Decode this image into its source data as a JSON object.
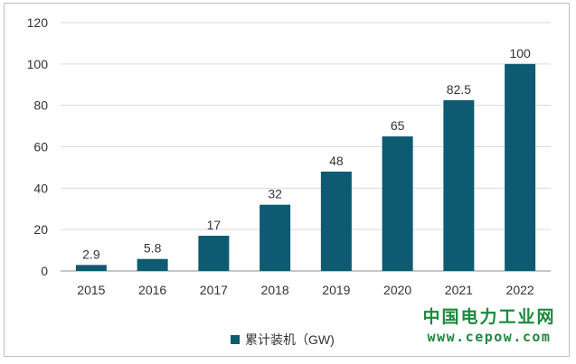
{
  "chart_data": {
    "type": "bar",
    "categories": [
      "2015",
      "2016",
      "2017",
      "2018",
      "2019",
      "2020",
      "2021",
      "2022"
    ],
    "series": [
      {
        "name": "累计装机（GW)",
        "values": [
          2.9,
          5.8,
          17,
          32,
          48,
          65,
          82.5,
          100
        ],
        "color": "#0d5a72"
      }
    ],
    "data_labels": [
      "2.9",
      "5.8",
      "17",
      "32",
      "48",
      "65",
      "82.5",
      "100"
    ],
    "yticks": [
      0,
      20,
      40,
      60,
      80,
      100,
      120
    ],
    "ylim": [
      0,
      120
    ],
    "title": "",
    "xlabel": "",
    "ylabel": "",
    "grid": true,
    "legend_position": "bottom-center",
    "gridline_color": "#d9d9d9",
    "axis_color": "#8c8c8c"
  },
  "legend": {
    "label": "累计装机（GW)"
  },
  "watermark": {
    "title": "中国电力工业网",
    "url": "www.cepow.com",
    "color": "#1a8a3c"
  }
}
